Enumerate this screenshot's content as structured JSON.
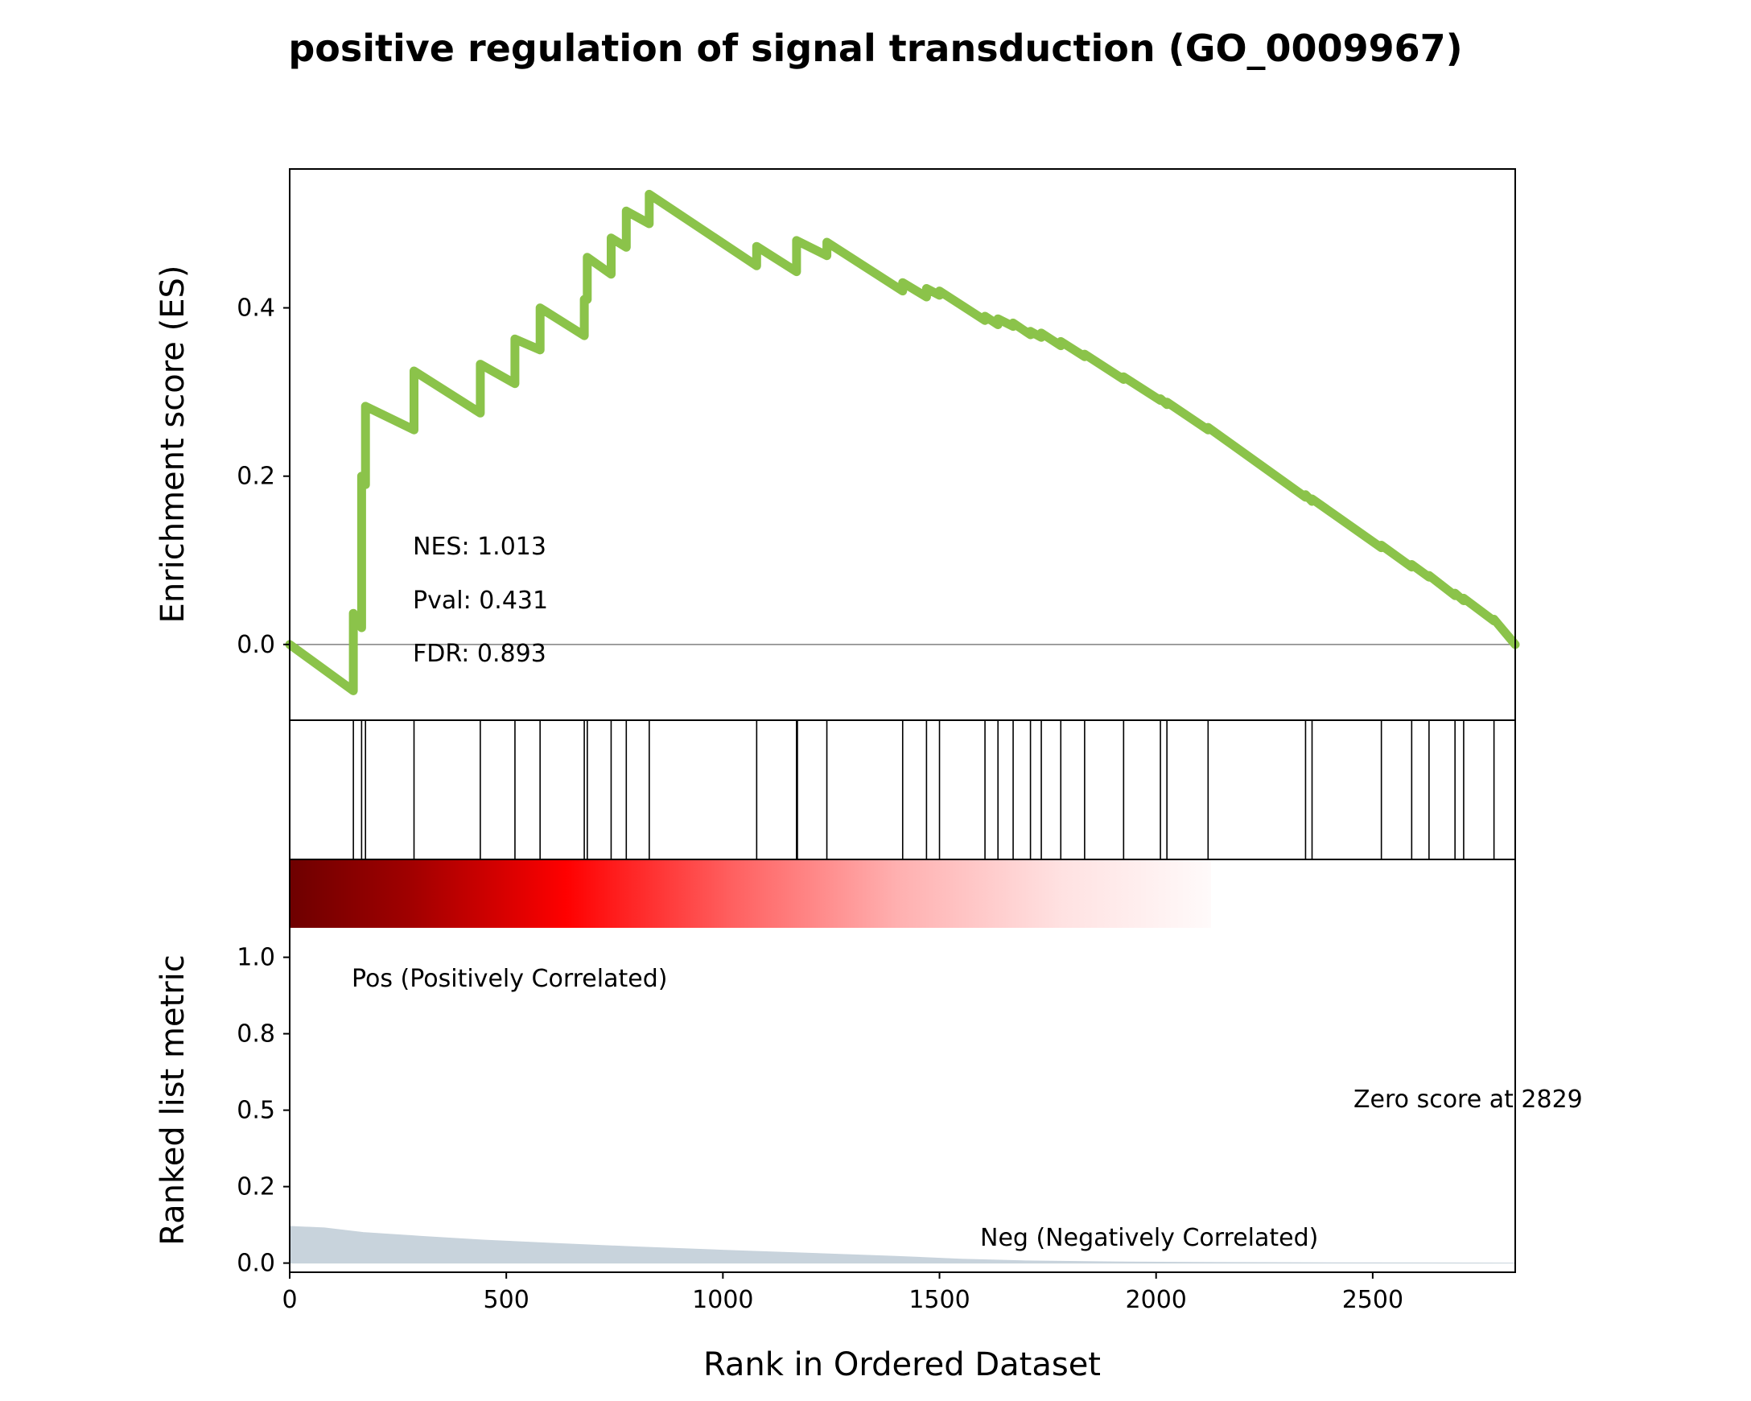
{
  "chart_data": {
    "type": "line",
    "title": "positive regulation of signal transduction (GO_0009967)",
    "xlabel": "Rank in Ordered Dataset",
    "xlim": [
      0,
      2829
    ],
    "x_ticks": [
      "0",
      "500",
      "1000",
      "1500",
      "2000",
      "2500"
    ],
    "es_panel": {
      "ylabel": "Enrichment score (ES)",
      "ylim": [
        -0.09,
        0.565
      ],
      "y_ticks": [
        "0.0",
        "0.2",
        "0.4"
      ],
      "line_color": "#8bc34a",
      "points": [
        [
          0,
          0.0
        ],
        [
          147,
          -0.055
        ],
        [
          147,
          0.037
        ],
        [
          166,
          0.02
        ],
        [
          166,
          0.2
        ],
        [
          175,
          0.19
        ],
        [
          175,
          0.283
        ],
        [
          287,
          0.255
        ],
        [
          287,
          0.325
        ],
        [
          440,
          0.275
        ],
        [
          440,
          0.333
        ],
        [
          520,
          0.31
        ],
        [
          520,
          0.363
        ],
        [
          578,
          0.35
        ],
        [
          578,
          0.4
        ],
        [
          680,
          0.367
        ],
        [
          680,
          0.41
        ],
        [
          687,
          0.41
        ],
        [
          687,
          0.46
        ],
        [
          742,
          0.44
        ],
        [
          742,
          0.483
        ],
        [
          777,
          0.472
        ],
        [
          777,
          0.515
        ],
        [
          830,
          0.5
        ],
        [
          830,
          0.535
        ],
        [
          1078,
          0.45
        ],
        [
          1078,
          0.473
        ],
        [
          1170,
          0.443
        ],
        [
          1170,
          0.48
        ],
        [
          1240,
          0.462
        ],
        [
          1240,
          0.478
        ],
        [
          1415,
          0.42
        ],
        [
          1415,
          0.43
        ],
        [
          1470,
          0.413
        ],
        [
          1470,
          0.423
        ],
        [
          1500,
          0.415
        ],
        [
          1500,
          0.42
        ],
        [
          1605,
          0.385
        ],
        [
          1605,
          0.39
        ],
        [
          1635,
          0.38
        ],
        [
          1635,
          0.387
        ],
        [
          1670,
          0.378
        ],
        [
          1670,
          0.382
        ],
        [
          1710,
          0.368
        ],
        [
          1710,
          0.372
        ],
        [
          1735,
          0.365
        ],
        [
          1735,
          0.37
        ],
        [
          1780,
          0.355
        ],
        [
          1780,
          0.36
        ],
        [
          1835,
          0.342
        ],
        [
          1835,
          0.345
        ],
        [
          1925,
          0.315
        ],
        [
          1925,
          0.318
        ],
        [
          2010,
          0.29
        ],
        [
          2010,
          0.292
        ],
        [
          2025,
          0.285
        ],
        [
          2025,
          0.288
        ],
        [
          2120,
          0.255
        ],
        [
          2120,
          0.258
        ],
        [
          2345,
          0.175
        ],
        [
          2345,
          0.178
        ],
        [
          2360,
          0.17
        ],
        [
          2360,
          0.173
        ],
        [
          2520,
          0.115
        ],
        [
          2520,
          0.118
        ],
        [
          2590,
          0.092
        ],
        [
          2590,
          0.095
        ],
        [
          2630,
          0.08
        ],
        [
          2630,
          0.082
        ],
        [
          2690,
          0.058
        ],
        [
          2690,
          0.061
        ],
        [
          2710,
          0.052
        ],
        [
          2710,
          0.055
        ],
        [
          2780,
          0.028
        ],
        [
          2780,
          0.03
        ],
        [
          2829,
          0.0
        ]
      ],
      "stats": {
        "nes": "NES: 1.013",
        "pval": "Pval: 0.431",
        "fdr": "FDR: 0.893"
      }
    },
    "hits": [
      147,
      166,
      175,
      287,
      440,
      520,
      578,
      680,
      687,
      742,
      777,
      830,
      1078,
      1170,
      1172,
      1240,
      1415,
      1470,
      1500,
      1605,
      1635,
      1670,
      1710,
      1735,
      1780,
      1835,
      1925,
      2010,
      2025,
      2120,
      2345,
      2360,
      2520,
      2590,
      2630,
      2690,
      2710,
      2780
    ],
    "rank_panel": {
      "ylabel": "Ranked list metric",
      "ylim": [
        -0.03,
        1.32
      ],
      "y_ticks": [
        {
          "value": 0.0,
          "label": "0.0"
        },
        {
          "value": 0.25,
          "label": "0.2"
        },
        {
          "value": 0.5,
          "label": "0.5"
        },
        {
          "value": 0.75,
          "label": "0.8"
        },
        {
          "value": 1.0,
          "label": "1.0"
        }
      ],
      "fill_color": "#c8d3dc",
      "metric_points": [
        [
          0,
          0.12
        ],
        [
          80,
          0.115
        ],
        [
          170,
          0.1
        ],
        [
          300,
          0.088
        ],
        [
          450,
          0.075
        ],
        [
          600,
          0.065
        ],
        [
          800,
          0.053
        ],
        [
          1000,
          0.042
        ],
        [
          1200,
          0.032
        ],
        [
          1400,
          0.022
        ],
        [
          1550,
          0.013
        ],
        [
          1700,
          0.007
        ],
        [
          1900,
          0.004
        ],
        [
          2100,
          0.002
        ],
        [
          2400,
          0.001
        ],
        [
          2829,
          0.0
        ]
      ],
      "pos_label": "Pos (Positively Correlated)",
      "neg_label": "Neg (Negatively Correlated)",
      "zero_label": "Zero score at 2829",
      "pos_color": "#ff0000",
      "neg_color": "#0000ff"
    }
  }
}
